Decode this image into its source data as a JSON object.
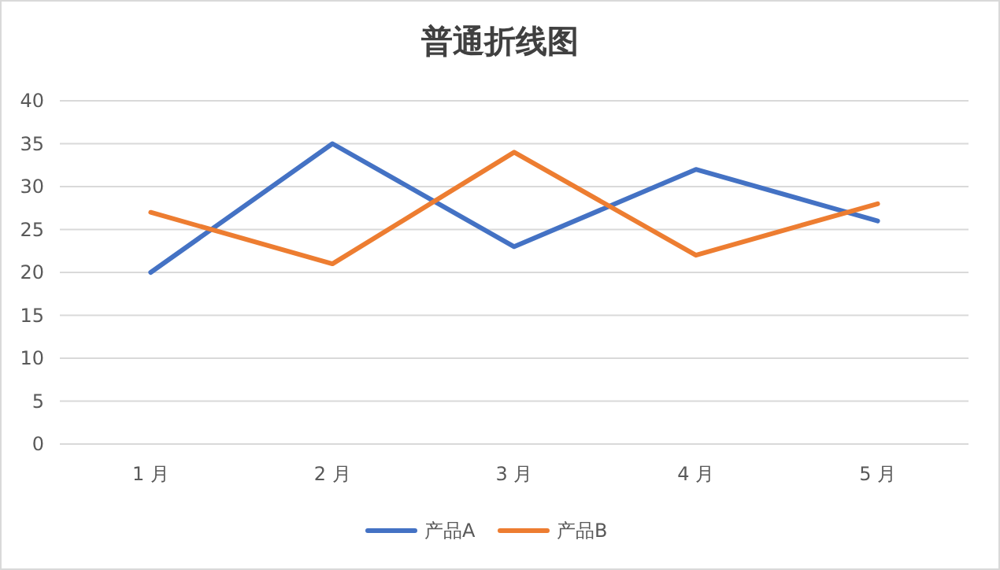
{
  "chart_data": {
    "type": "line",
    "title": "普通折线图",
    "categories": [
      "1 月",
      "2 月",
      "3 月",
      "4 月",
      "5 月"
    ],
    "series": [
      {
        "name": "产品A",
        "color": "#4472c4",
        "values": [
          20,
          35,
          23,
          32,
          26
        ]
      },
      {
        "name": "产品B",
        "color": "#ed7d31",
        "values": [
          27,
          21,
          34,
          22,
          28
        ]
      }
    ],
    "ylim": [
      0,
      40
    ],
    "yticks": [
      0,
      5,
      10,
      15,
      20,
      25,
      30,
      35,
      40
    ],
    "grid": "y",
    "legend": "bottom",
    "marker": "none",
    "line_style": "solid"
  }
}
